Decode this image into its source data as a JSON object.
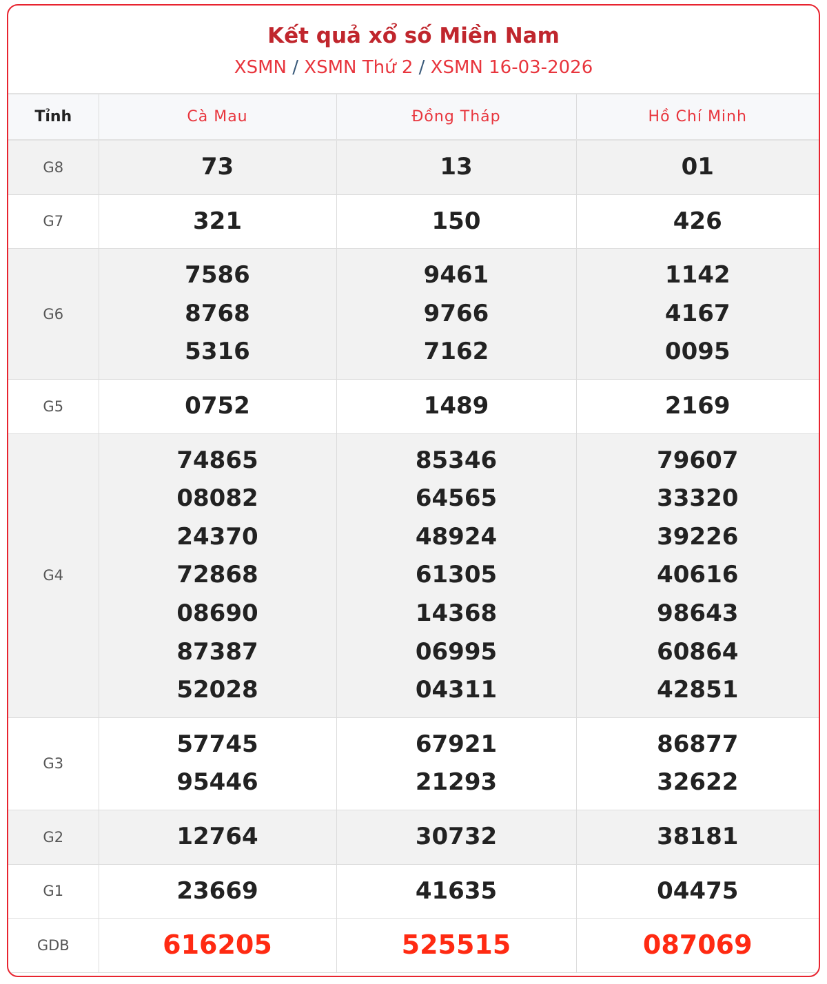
{
  "header": {
    "title": "Kết quả xổ số Miền Nam",
    "breadcrumb": [
      {
        "label": "XSMN"
      },
      {
        "label": "XSMN Thứ 2"
      },
      {
        "label": "XSMN 16-03-2026"
      }
    ],
    "separator": "/"
  },
  "table": {
    "first_col_header": "Tỉnh",
    "provinces": [
      "Cà Mau",
      "Đồng Tháp",
      "Hồ Chí Minh"
    ],
    "rows": [
      {
        "prize": "G8",
        "values": [
          [
            "73"
          ],
          [
            "13"
          ],
          [
            "01"
          ]
        ]
      },
      {
        "prize": "G7",
        "values": [
          [
            "321"
          ],
          [
            "150"
          ],
          [
            "426"
          ]
        ]
      },
      {
        "prize": "G6",
        "values": [
          [
            "7586",
            "8768",
            "5316"
          ],
          [
            "9461",
            "9766",
            "7162"
          ],
          [
            "1142",
            "4167",
            "0095"
          ]
        ]
      },
      {
        "prize": "G5",
        "values": [
          [
            "0752"
          ],
          [
            "1489"
          ],
          [
            "2169"
          ]
        ]
      },
      {
        "prize": "G4",
        "values": [
          [
            "74865",
            "08082",
            "24370",
            "72868",
            "08690",
            "87387",
            "52028"
          ],
          [
            "85346",
            "64565",
            "48924",
            "61305",
            "14368",
            "06995",
            "04311"
          ],
          [
            "79607",
            "33320",
            "39226",
            "40616",
            "98643",
            "60864",
            "42851"
          ]
        ]
      },
      {
        "prize": "G3",
        "values": [
          [
            "57745",
            "95446"
          ],
          [
            "67921",
            "21293"
          ],
          [
            "86877",
            "32622"
          ]
        ]
      },
      {
        "prize": "G2",
        "values": [
          [
            "12764"
          ],
          [
            "30732"
          ],
          [
            "38181"
          ]
        ]
      },
      {
        "prize": "G1",
        "values": [
          [
            "23669"
          ],
          [
            "41635"
          ],
          [
            "04475"
          ]
        ]
      },
      {
        "prize": "GDB",
        "values": [
          [
            "616205"
          ],
          [
            "525515"
          ],
          [
            "087069"
          ]
        ]
      }
    ]
  },
  "colors": {
    "accent": "#e8242f",
    "title": "#c0262d",
    "special_prize": "#ff2a12"
  }
}
